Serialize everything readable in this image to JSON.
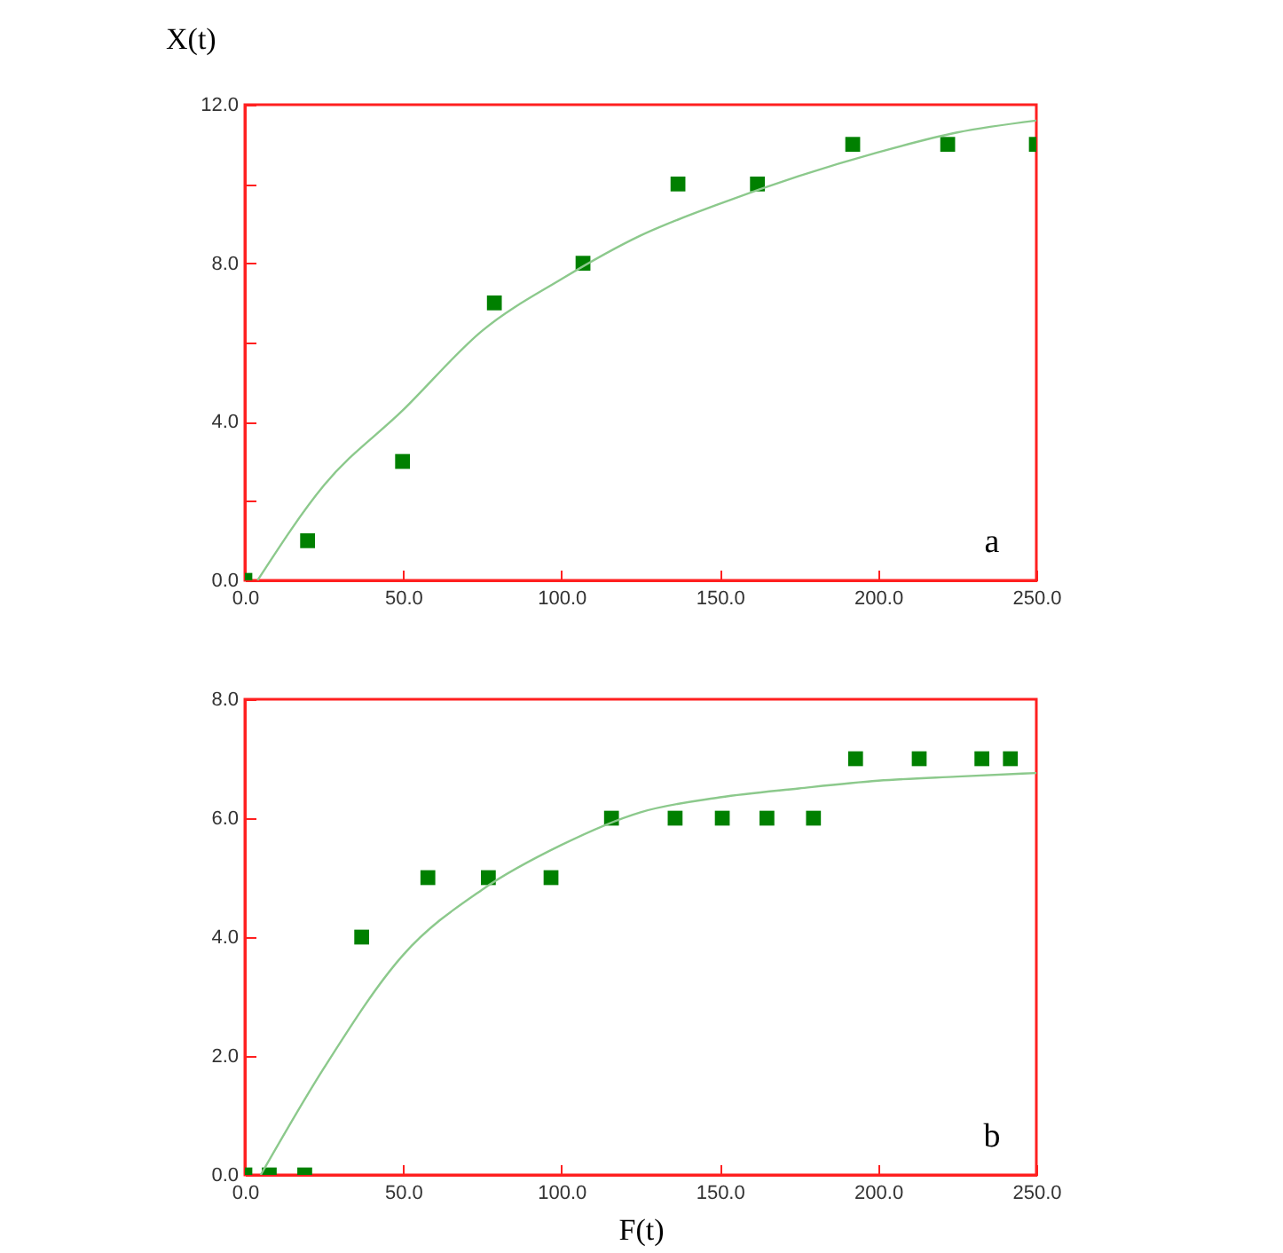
{
  "chart_data": [
    {
      "type": "scatter",
      "ylabel": "X(t)",
      "annotations": [
        "a"
      ],
      "grid": false,
      "xlim": [
        0,
        250
      ],
      "xticks": [
        {
          "value": 0,
          "label": "0.0"
        },
        {
          "value": 50,
          "label": "50.0"
        },
        {
          "value": 100,
          "label": "100.0"
        },
        {
          "value": 150,
          "label": "150.0"
        },
        {
          "value": 200,
          "label": "200.0"
        },
        {
          "value": 250,
          "label": "250.0"
        }
      ],
      "ylim": [
        0,
        12
      ],
      "yticks": [
        {
          "value": 0,
          "label": "0.0"
        },
        {
          "value": 2,
          "label": null
        },
        {
          "value": 4,
          "label": "4.0"
        },
        {
          "value": 6,
          "label": null
        },
        {
          "value": 8,
          "label": "8.0"
        },
        {
          "value": 10,
          "label": null
        },
        {
          "value": 12,
          "label": "12.0"
        }
      ],
      "series": [
        {
          "color": "#008000",
          "marker": "square",
          "x": [
            0,
            19.8,
            49.8,
            78.8,
            106.8,
            136.8,
            161.9,
            192,
            222,
            250
          ],
          "values": [
            0,
            1,
            3,
            7,
            8,
            10,
            10,
            11,
            11,
            11
          ]
        },
        {
          "type": "line",
          "color": "#8cc98c",
          "x": [
            4,
            25,
            50,
            75,
            100,
            125,
            150,
            175,
            200,
            225,
            250
          ],
          "values": [
            0,
            2.4,
            4.3,
            6.3,
            7.6,
            8.7,
            9.5,
            10.2,
            10.8,
            11.3,
            11.6
          ]
        }
      ]
    },
    {
      "type": "scatter",
      "xlabel": "F(t)",
      "annotations": [
        "b"
      ],
      "grid": false,
      "xlim": [
        0,
        250
      ],
      "xticks": [
        {
          "value": 0,
          "label": "0.0"
        },
        {
          "value": 50,
          "label": "50.0"
        },
        {
          "value": 100,
          "label": "100.0"
        },
        {
          "value": 150,
          "label": "150.0"
        },
        {
          "value": 200,
          "label": "200.0"
        },
        {
          "value": 250,
          "label": "250.0"
        }
      ],
      "ylim": [
        0,
        8
      ],
      "yticks": [
        {
          "value": 0,
          "label": "0.0"
        },
        {
          "value": 2,
          "label": "2.0"
        },
        {
          "value": 4,
          "label": "4.0"
        },
        {
          "value": 6,
          "label": "6.0"
        },
        {
          "value": 8,
          "label": "8.0"
        }
      ],
      "series": [
        {
          "color": "#008000",
          "marker": "square",
          "x": [
            0,
            7.7,
            18.9,
            36.9,
            57.8,
            76.9,
            96.7,
            115.8,
            135.9,
            150.8,
            164.9,
            179.6,
            192.9,
            213,
            232.8,
            241.8
          ],
          "values": [
            0,
            0,
            0,
            4,
            5,
            5,
            5,
            6,
            6,
            6,
            6,
            6,
            7,
            7,
            7,
            7
          ]
        },
        {
          "type": "line",
          "color": "#8cc98c",
          "x": [
            5,
            25,
            50,
            75,
            100,
            125,
            150,
            175,
            200,
            225,
            250
          ],
          "values": [
            0,
            1.8,
            3.7,
            4.8,
            5.55,
            6.1,
            6.35,
            6.5,
            6.63,
            6.7,
            6.76
          ]
        }
      ]
    }
  ]
}
